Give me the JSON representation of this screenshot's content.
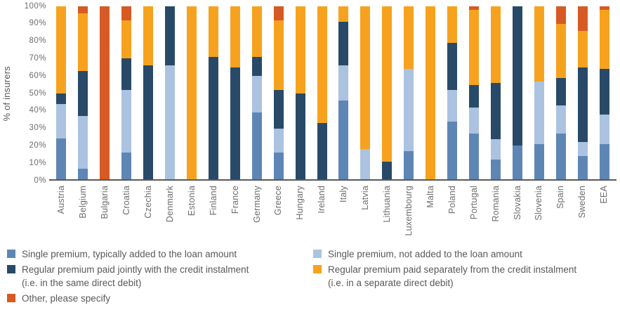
{
  "chart_data": {
    "type": "bar",
    "stacked": true,
    "title": "",
    "xlabel": "",
    "ylabel": "% of insurers",
    "ylim": [
      0,
      100
    ],
    "ytick_step": 10,
    "ytick_labels": [
      "0%",
      "10%",
      "20%",
      "30%",
      "40%",
      "50%",
      "60%",
      "70%",
      "80%",
      "90%",
      "100%"
    ],
    "grid": false,
    "legend_position": "bottom",
    "axis_color": "#595959",
    "categories": [
      "Austria",
      "Belgium",
      "Bulgaria",
      "Croatia",
      "Czechia",
      "Denmark",
      "Estonia",
      "Finland",
      "France",
      "Germany",
      "Greece",
      "Hungary",
      "Ireland",
      "Italy",
      "Latvia",
      "Lithuania",
      "Luxembourg",
      "Malta",
      "Poland",
      "Portugal",
      "Romania",
      "Slovakia",
      "Slovenia",
      "Spain",
      "Sweden",
      "EEA"
    ],
    "series": [
      {
        "name": "Single premium, typically added to the loan amount",
        "color": "#5E86B5",
        "values": [
          24,
          7,
          0,
          16,
          0,
          0,
          0,
          0,
          0,
          39,
          16,
          0,
          0,
          46,
          0,
          0,
          17,
          0,
          34,
          27,
          12,
          20,
          21,
          27,
          14,
          21
        ]
      },
      {
        "name": "Single premium, not added to the loan amount",
        "color": "#ABC3E0",
        "values": [
          20,
          30,
          0,
          36,
          0,
          66,
          0,
          0,
          0,
          21,
          14,
          0,
          0,
          20,
          18,
          0,
          47,
          0,
          18,
          15,
          12,
          0,
          36,
          16,
          8,
          17
        ]
      },
      {
        "name": "Regular premium paid jointly with the credit instalment (i.e. in the same direct debit)",
        "color": "#284A68",
        "values": [
          6,
          26,
          0,
          18,
          66,
          34,
          0,
          71,
          65,
          11,
          22,
          50,
          33,
          25,
          0,
          11,
          0,
          0,
          27,
          13,
          32,
          80,
          0,
          16,
          43,
          26
        ]
      },
      {
        "name": "Regular premium paid separately from the credit instalment (i.e. in a separate direct debit)",
        "color": "#F7A21E",
        "values": [
          50,
          33,
          0,
          22,
          34,
          0,
          100,
          29,
          35,
          29,
          40,
          50,
          67,
          9,
          82,
          89,
          36,
          100,
          21,
          43,
          44,
          0,
          43,
          31,
          21,
          34
        ]
      },
      {
        "name": "Other, please specify",
        "color": "#D75A24",
        "values": [
          0,
          4,
          100,
          8,
          0,
          0,
          0,
          0,
          0,
          0,
          8,
          0,
          0,
          0,
          0,
          0,
          0,
          0,
          0,
          2,
          0,
          0,
          0,
          10,
          14,
          2
        ]
      }
    ]
  },
  "legend": {
    "left": [
      {
        "swatch": "#5E86B5",
        "line1": "Single premium, typically added to the loan amount",
        "line2": ""
      },
      {
        "swatch": "#284A68",
        "line1": "Regular premium paid jointly with the credit instalment",
        "line2": "(i.e. in the same direct debit)"
      },
      {
        "swatch": "#D75A24",
        "line1": "Other, please specify",
        "line2": ""
      }
    ],
    "right": [
      {
        "swatch": "#ABC3E0",
        "line1": "Single premium, not added to the loan amount",
        "line2": ""
      },
      {
        "swatch": "#F7A21E",
        "line1": "Regular premium paid separately from the credit instalment",
        "line2": "(i.e. in a separate direct debit)"
      }
    ]
  }
}
